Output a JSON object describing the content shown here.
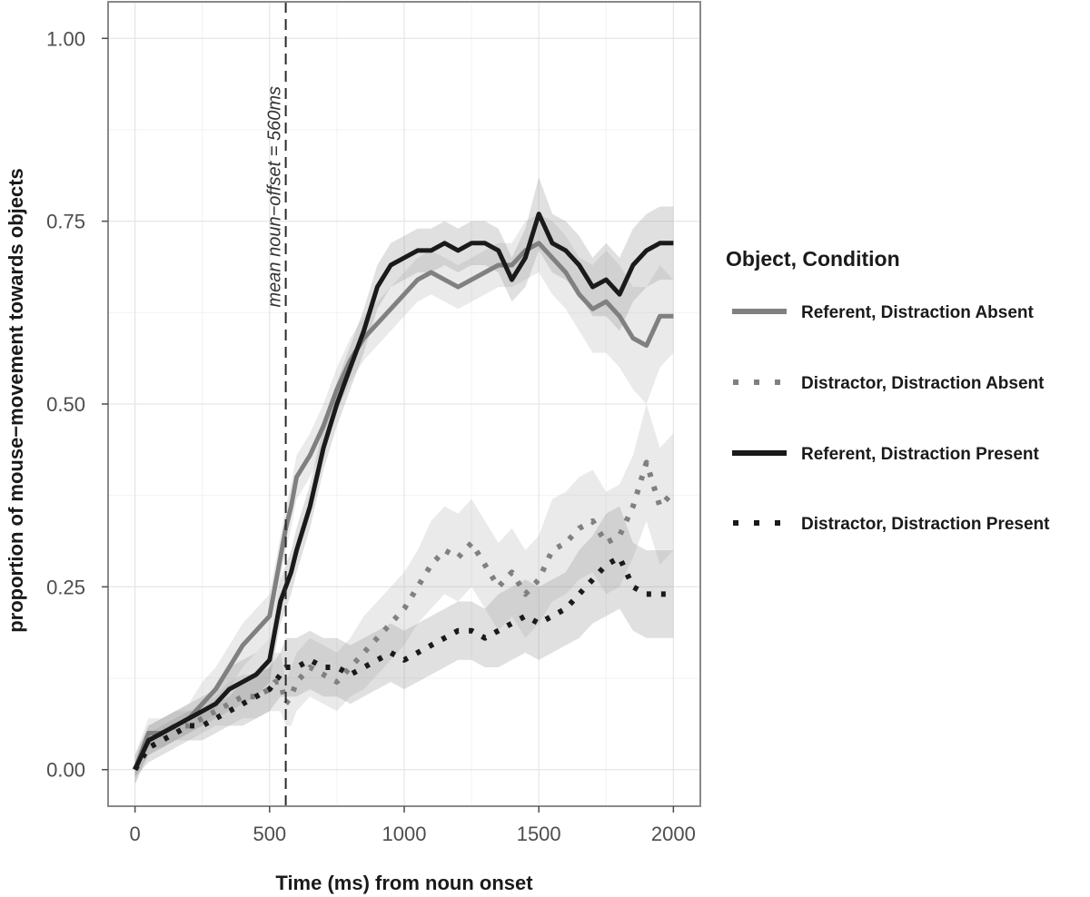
{
  "chart_data": {
    "type": "line",
    "xlabel": "Time (ms) from noun onset",
    "ylabel": "proportion of mouse−movement towards objects",
    "xlim": [
      -100,
      2100
    ],
    "ylim": [
      -0.05,
      1.05
    ],
    "xticks": [
      0,
      500,
      1000,
      1500,
      2000
    ],
    "xtick_labels": [
      "0",
      "500",
      "1000",
      "1500",
      "2000"
    ],
    "yticks": [
      0,
      0.25,
      0.5,
      0.75,
      1.0
    ],
    "ytick_labels": [
      "0.00",
      "0.25",
      "0.50",
      "0.75",
      "1.00"
    ],
    "grid": true,
    "legend_title": "Object, Condition",
    "legend_position": "right",
    "annotation": {
      "text": "mean noun−offset = 560ms",
      "x": 560
    },
    "x": [
      0,
      50,
      100,
      150,
      200,
      250,
      300,
      350,
      400,
      450,
      500,
      520,
      540,
      560,
      580,
      600,
      650,
      700,
      750,
      800,
      850,
      900,
      950,
      1000,
      1050,
      1100,
      1150,
      1200,
      1250,
      1300,
      1350,
      1400,
      1450,
      1500,
      1550,
      1600,
      1650,
      1700,
      1750,
      1800,
      1850,
      1900,
      1950,
      2000
    ],
    "series": [
      {
        "name": "Referent, Distraction Absent",
        "color": "#808080",
        "style": "solid",
        "values": [
          0.0,
          0.05,
          0.05,
          0.06,
          0.07,
          0.09,
          0.11,
          0.14,
          0.17,
          0.19,
          0.21,
          0.25,
          0.29,
          0.33,
          0.36,
          0.4,
          0.43,
          0.47,
          0.52,
          0.56,
          0.59,
          0.61,
          0.63,
          0.65,
          0.67,
          0.68,
          0.67,
          0.66,
          0.67,
          0.68,
          0.69,
          0.69,
          0.71,
          0.72,
          0.7,
          0.68,
          0.65,
          0.63,
          0.64,
          0.62,
          0.59,
          0.58,
          0.62,
          0.62
        ],
        "ci_lower": [
          -0.02,
          0.03,
          0.03,
          0.04,
          0.05,
          0.06,
          0.08,
          0.11,
          0.14,
          0.16,
          0.18,
          0.22,
          0.26,
          0.3,
          0.33,
          0.37,
          0.4,
          0.44,
          0.49,
          0.53,
          0.56,
          0.58,
          0.6,
          0.62,
          0.64,
          0.65,
          0.64,
          0.63,
          0.64,
          0.65,
          0.66,
          0.66,
          0.67,
          0.68,
          0.65,
          0.63,
          0.6,
          0.57,
          0.57,
          0.55,
          0.52,
          0.5,
          0.55,
          0.57
        ],
        "ci_upper": [
          0.02,
          0.07,
          0.07,
          0.08,
          0.09,
          0.12,
          0.14,
          0.17,
          0.2,
          0.22,
          0.24,
          0.28,
          0.32,
          0.36,
          0.39,
          0.43,
          0.46,
          0.5,
          0.55,
          0.59,
          0.62,
          0.64,
          0.66,
          0.68,
          0.7,
          0.71,
          0.7,
          0.69,
          0.7,
          0.71,
          0.72,
          0.72,
          0.75,
          0.76,
          0.75,
          0.73,
          0.7,
          0.69,
          0.71,
          0.69,
          0.66,
          0.66,
          0.69,
          0.67
        ]
      },
      {
        "name": "Distractor, Distraction Absent",
        "color": "#808080",
        "style": "dotted",
        "values": [
          0.0,
          0.04,
          0.05,
          0.06,
          0.06,
          0.07,
          0.08,
          0.09,
          0.1,
          0.1,
          0.11,
          0.12,
          0.12,
          0.09,
          0.1,
          0.12,
          0.14,
          0.13,
          0.12,
          0.14,
          0.16,
          0.18,
          0.2,
          0.22,
          0.25,
          0.28,
          0.3,
          0.29,
          0.31,
          0.28,
          0.25,
          0.27,
          0.24,
          0.26,
          0.3,
          0.31,
          0.33,
          0.34,
          0.31,
          0.32,
          0.36,
          0.42,
          0.36,
          0.38
        ],
        "ci_lower": [
          -0.01,
          0.02,
          0.03,
          0.04,
          0.04,
          0.05,
          0.06,
          0.06,
          0.07,
          0.07,
          0.08,
          0.08,
          0.08,
          0.06,
          0.06,
          0.08,
          0.1,
          0.09,
          0.08,
          0.1,
          0.11,
          0.13,
          0.15,
          0.17,
          0.2,
          0.22,
          0.24,
          0.23,
          0.25,
          0.22,
          0.19,
          0.21,
          0.18,
          0.2,
          0.23,
          0.24,
          0.26,
          0.27,
          0.24,
          0.25,
          0.29,
          0.34,
          0.28,
          0.3
        ],
        "ci_upper": [
          0.01,
          0.06,
          0.07,
          0.08,
          0.08,
          0.09,
          0.1,
          0.12,
          0.13,
          0.13,
          0.14,
          0.16,
          0.16,
          0.12,
          0.14,
          0.16,
          0.18,
          0.17,
          0.16,
          0.18,
          0.21,
          0.23,
          0.25,
          0.27,
          0.3,
          0.34,
          0.36,
          0.35,
          0.37,
          0.34,
          0.31,
          0.33,
          0.3,
          0.32,
          0.37,
          0.38,
          0.4,
          0.41,
          0.38,
          0.39,
          0.43,
          0.5,
          0.44,
          0.46
        ]
      },
      {
        "name": "Referent, Distraction Present",
        "color": "#1a1a1a",
        "style": "solid",
        "values": [
          0.0,
          0.04,
          0.05,
          0.06,
          0.07,
          0.08,
          0.09,
          0.11,
          0.12,
          0.13,
          0.15,
          0.19,
          0.23,
          0.25,
          0.27,
          0.3,
          0.36,
          0.44,
          0.5,
          0.55,
          0.6,
          0.66,
          0.69,
          0.7,
          0.71,
          0.71,
          0.72,
          0.71,
          0.72,
          0.72,
          0.71,
          0.67,
          0.7,
          0.76,
          0.72,
          0.71,
          0.69,
          0.66,
          0.67,
          0.65,
          0.69,
          0.71,
          0.72,
          0.72
        ],
        "ci_lower": [
          -0.02,
          0.02,
          0.03,
          0.04,
          0.05,
          0.06,
          0.07,
          0.08,
          0.09,
          0.1,
          0.12,
          0.16,
          0.2,
          0.22,
          0.24,
          0.27,
          0.33,
          0.41,
          0.47,
          0.52,
          0.57,
          0.63,
          0.66,
          0.67,
          0.68,
          0.68,
          0.69,
          0.68,
          0.69,
          0.69,
          0.68,
          0.64,
          0.66,
          0.71,
          0.68,
          0.67,
          0.65,
          0.62,
          0.62,
          0.6,
          0.64,
          0.66,
          0.67,
          0.67
        ],
        "ci_upper": [
          0.02,
          0.06,
          0.07,
          0.08,
          0.09,
          0.1,
          0.11,
          0.14,
          0.15,
          0.16,
          0.18,
          0.22,
          0.26,
          0.28,
          0.3,
          0.33,
          0.39,
          0.47,
          0.53,
          0.58,
          0.63,
          0.69,
          0.72,
          0.73,
          0.74,
          0.74,
          0.75,
          0.74,
          0.75,
          0.75,
          0.74,
          0.7,
          0.74,
          0.81,
          0.76,
          0.75,
          0.73,
          0.7,
          0.72,
          0.7,
          0.74,
          0.76,
          0.77,
          0.77
        ]
      },
      {
        "name": "Distractor, Distraction Present",
        "color": "#1a1a1a",
        "style": "dotted",
        "values": [
          0.0,
          0.03,
          0.04,
          0.05,
          0.06,
          0.06,
          0.07,
          0.08,
          0.09,
          0.1,
          0.11,
          0.12,
          0.13,
          0.14,
          0.14,
          0.14,
          0.15,
          0.14,
          0.14,
          0.13,
          0.14,
          0.15,
          0.16,
          0.15,
          0.16,
          0.17,
          0.18,
          0.19,
          0.19,
          0.18,
          0.19,
          0.2,
          0.21,
          0.2,
          0.21,
          0.22,
          0.24,
          0.26,
          0.28,
          0.29,
          0.25,
          0.24,
          0.24,
          0.24
        ],
        "ci_lower": [
          -0.01,
          0.01,
          0.02,
          0.03,
          0.04,
          0.04,
          0.05,
          0.06,
          0.06,
          0.07,
          0.08,
          0.09,
          0.1,
          0.1,
          0.1,
          0.1,
          0.11,
          0.1,
          0.1,
          0.09,
          0.1,
          0.11,
          0.12,
          0.11,
          0.12,
          0.13,
          0.14,
          0.15,
          0.15,
          0.14,
          0.14,
          0.15,
          0.16,
          0.15,
          0.16,
          0.17,
          0.18,
          0.2,
          0.21,
          0.22,
          0.19,
          0.18,
          0.18,
          0.18
        ],
        "ci_upper": [
          0.01,
          0.05,
          0.06,
          0.07,
          0.08,
          0.08,
          0.09,
          0.1,
          0.12,
          0.13,
          0.14,
          0.15,
          0.16,
          0.18,
          0.18,
          0.18,
          0.19,
          0.18,
          0.18,
          0.17,
          0.18,
          0.19,
          0.2,
          0.19,
          0.2,
          0.21,
          0.22,
          0.23,
          0.23,
          0.22,
          0.24,
          0.25,
          0.26,
          0.25,
          0.26,
          0.27,
          0.3,
          0.32,
          0.35,
          0.36,
          0.31,
          0.3,
          0.3,
          0.3
        ]
      }
    ]
  }
}
